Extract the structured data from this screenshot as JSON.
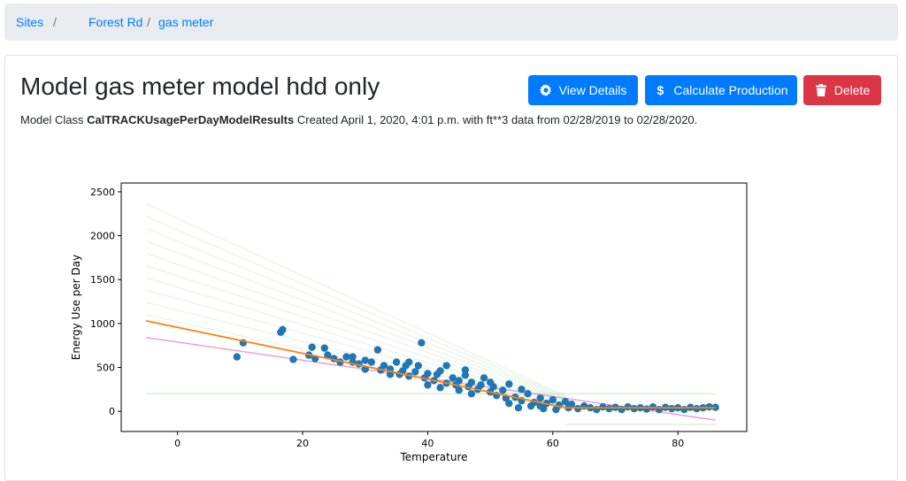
{
  "breadcrumb": {
    "items": [
      {
        "label": "Sites"
      },
      {
        "label": "Forest Rd"
      },
      {
        "label": "gas meter"
      }
    ],
    "separator": "/"
  },
  "header": {
    "title": "Model gas meter model hdd only"
  },
  "buttons": {
    "view_details": {
      "label": "View Details",
      "icon": "gear-icon"
    },
    "calculate_production": {
      "label": "Calculate Production",
      "icon": "dollar-icon"
    },
    "delete": {
      "label": "Delete",
      "icon": "trash-icon"
    }
  },
  "subtitle": {
    "prefix": "Model Class",
    "model_class": "CalTRACKUsagePerDayModelResults",
    "details": "Created April 1, 2020, 4:01 p.m. with ft**3 data from 02/28/2019 to 02/28/2020."
  },
  "colors": {
    "primary": "#007bff",
    "danger": "#dc3545",
    "points": "#1f77b4",
    "fit_line": "#ff7f0e",
    "lower_band": "#e377c2",
    "upper_band": "#2ca02c"
  },
  "chart_data": {
    "type": "scatter",
    "xlabel": "Temperature",
    "ylabel": "Energy Use per Day",
    "xlim": [
      -9,
      91
    ],
    "ylim": [
      -230,
      2600
    ],
    "xticks": [
      0,
      20,
      40,
      60,
      80
    ],
    "yticks": [
      0,
      500,
      1000,
      1500,
      2000,
      2500
    ],
    "fit_line": {
      "x": [
        -5,
        62,
        86
      ],
      "y": [
        1030,
        40,
        40
      ]
    },
    "lower_line": {
      "x": [
        -5,
        86
      ],
      "y": [
        840,
        -100
      ]
    },
    "points": [
      [
        9.5,
        620
      ],
      [
        10.5,
        780
      ],
      [
        16.5,
        900
      ],
      [
        16.8,
        930
      ],
      [
        18.5,
        590
      ],
      [
        21,
        640
      ],
      [
        21.5,
        730
      ],
      [
        22,
        600
      ],
      [
        23.5,
        720
      ],
      [
        24,
        640
      ],
      [
        25,
        600
      ],
      [
        26,
        560
      ],
      [
        27,
        620
      ],
      [
        28,
        560
      ],
      [
        29,
        540
      ],
      [
        30,
        580
      ],
      [
        31,
        560
      ],
      [
        32,
        700
      ],
      [
        32.5,
        470
      ],
      [
        33,
        520
      ],
      [
        34,
        480
      ],
      [
        35,
        560
      ],
      [
        35.5,
        420
      ],
      [
        36,
        460
      ],
      [
        36.5,
        520
      ],
      [
        37,
        400
      ],
      [
        38,
        450
      ],
      [
        38.5,
        520
      ],
      [
        39,
        780
      ],
      [
        39.5,
        380
      ],
      [
        40,
        430
      ],
      [
        41,
        350
      ],
      [
        41.5,
        420
      ],
      [
        42,
        460
      ],
      [
        43,
        320
      ],
      [
        44,
        380
      ],
      [
        44.5,
        300
      ],
      [
        45,
        350
      ],
      [
        46,
        410
      ],
      [
        46.5,
        280
      ],
      [
        47,
        330
      ],
      [
        48,
        250
      ],
      [
        48.5,
        300
      ],
      [
        49,
        380
      ],
      [
        50,
        220
      ],
      [
        50.5,
        280
      ],
      [
        51,
        180
      ],
      [
        52,
        240
      ],
      [
        52.5,
        150
      ],
      [
        53,
        90
      ],
      [
        54,
        160
      ],
      [
        54.5,
        40
      ],
      [
        55,
        120
      ],
      [
        56,
        200
      ],
      [
        56.5,
        60
      ],
      [
        57,
        100
      ],
      [
        58,
        150
      ],
      [
        58.5,
        30
      ],
      [
        59,
        90
      ],
      [
        60,
        130
      ],
      [
        60.5,
        20
      ],
      [
        61,
        70
      ],
      [
        62,
        110
      ],
      [
        62.5,
        40
      ],
      [
        63,
        80
      ],
      [
        64,
        30
      ],
      [
        65,
        60
      ],
      [
        66,
        40
      ],
      [
        67,
        20
      ],
      [
        68,
        50
      ],
      [
        69,
        30
      ],
      [
        70,
        45
      ],
      [
        71,
        20
      ],
      [
        72,
        50
      ],
      [
        73,
        30
      ],
      [
        74,
        40
      ],
      [
        75,
        25
      ],
      [
        76,
        50
      ],
      [
        77,
        20
      ],
      [
        78,
        45
      ],
      [
        79,
        30
      ],
      [
        80,
        40
      ],
      [
        81,
        20
      ],
      [
        82,
        45
      ],
      [
        83,
        30
      ],
      [
        84,
        40
      ],
      [
        85,
        50
      ],
      [
        86,
        45
      ],
      [
        46,
        470
      ],
      [
        43,
        520
      ],
      [
        37,
        560
      ],
      [
        34,
        420
      ],
      [
        30,
        480
      ],
      [
        28,
        620
      ],
      [
        50,
        330
      ],
      [
        55,
        250
      ],
      [
        45,
        240
      ],
      [
        40,
        300
      ],
      [
        53,
        310
      ],
      [
        58,
        60
      ],
      [
        47,
        200
      ],
      [
        42,
        270
      ]
    ]
  }
}
